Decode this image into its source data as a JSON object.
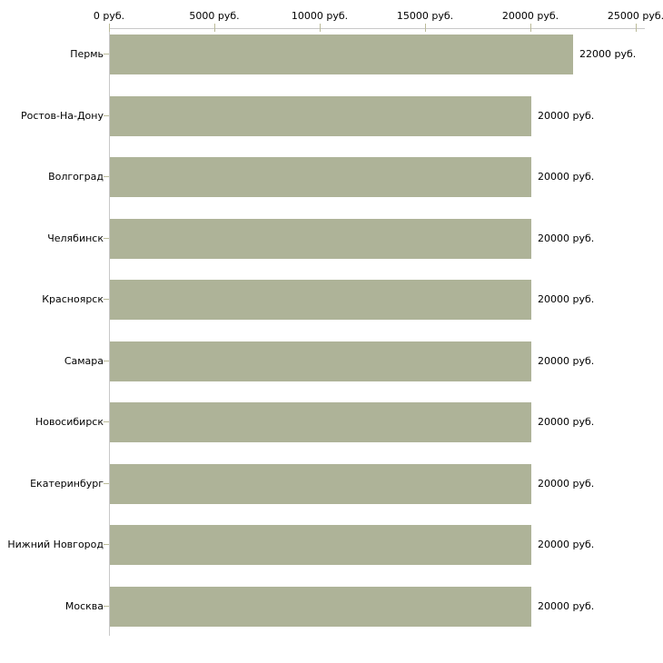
{
  "chart_data": {
    "type": "bar",
    "orientation": "horizontal",
    "title": "",
    "xlabel": "",
    "ylabel": "",
    "unit": "руб.",
    "categories": [
      "Пермь",
      "Ростов-На-Дону",
      "Волгоград",
      "Челябинск",
      "Красноярск",
      "Самара",
      "Новосибирск",
      "Екатеринбург",
      "Нижний Новгород",
      "Москва"
    ],
    "values": [
      22000,
      20000,
      20000,
      20000,
      20000,
      20000,
      20000,
      20000,
      20000,
      20000
    ],
    "value_labels": [
      "22000 руб.",
      "20000 руб.",
      "20000 руб.",
      "20000 руб.",
      "20000 руб.",
      "20000 руб.",
      "20000 руб.",
      "20000 руб.",
      "20000 руб.",
      "20000 руб."
    ],
    "x_tick_values": [
      0,
      5000,
      10000,
      15000,
      20000,
      25000
    ],
    "x_tick_labels": [
      "0 руб.",
      "5000 руб.",
      "10000 руб.",
      "15000 руб.",
      "20000 руб.",
      "25000 руб."
    ],
    "xlim": [
      0,
      25000
    ],
    "grid": "off",
    "legend": "none",
    "axis_position": "top",
    "colors": {
      "bar": "#aeb398",
      "axis_line": "#c8c8c8",
      "tick_mark": "#bbbb99",
      "text": "#000000",
      "background": "#ffffff"
    }
  }
}
